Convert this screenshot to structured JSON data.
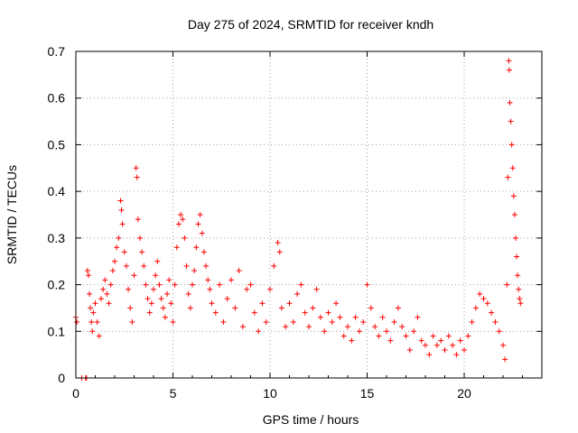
{
  "chart_data": {
    "type": "scatter",
    "title": "Day 275 of 2024, SRMTID for receiver kndh",
    "xlabel": "GPS time / hours",
    "ylabel": "SRMTID / TECUs",
    "xlim": [
      0,
      24
    ],
    "ylim": [
      0,
      0.7
    ],
    "xticks": [
      0,
      5,
      10,
      15,
      20
    ],
    "yticks": [
      0,
      0.1,
      0.2,
      0.3,
      0.4,
      0.5,
      0.6,
      0.7
    ],
    "xtick_labels": [
      "0",
      "5",
      "10",
      "15",
      "20"
    ],
    "ytick_labels": [
      "0",
      "0.1",
      "0.2",
      "0.3",
      "0.4",
      "0.5",
      "0.6",
      "0.7"
    ],
    "grid": true,
    "marker": "+",
    "color": "#ff0000",
    "series": [
      {
        "name": "SRMTID",
        "points": [
          [
            0.0,
            0.13
          ],
          [
            0.05,
            0.12
          ],
          [
            0.3,
            0.0
          ],
          [
            0.5,
            0.0
          ],
          [
            0.55,
            0.0
          ],
          [
            0.6,
            0.23
          ],
          [
            0.65,
            0.22
          ],
          [
            0.7,
            0.18
          ],
          [
            0.75,
            0.15
          ],
          [
            0.8,
            0.12
          ],
          [
            0.85,
            0.1
          ],
          [
            0.9,
            0.14
          ],
          [
            1.0,
            0.16
          ],
          [
            1.1,
            0.12
          ],
          [
            1.2,
            0.09
          ],
          [
            1.3,
            0.17
          ],
          [
            1.4,
            0.19
          ],
          [
            1.5,
            0.21
          ],
          [
            1.6,
            0.18
          ],
          [
            1.7,
            0.16
          ],
          [
            1.8,
            0.2
          ],
          [
            1.9,
            0.23
          ],
          [
            2.0,
            0.25
          ],
          [
            2.1,
            0.28
          ],
          [
            2.2,
            0.3
          ],
          [
            2.3,
            0.38
          ],
          [
            2.35,
            0.36
          ],
          [
            2.4,
            0.33
          ],
          [
            2.5,
            0.27
          ],
          [
            2.6,
            0.24
          ],
          [
            2.7,
            0.19
          ],
          [
            2.8,
            0.15
          ],
          [
            2.9,
            0.12
          ],
          [
            3.0,
            0.22
          ],
          [
            3.1,
            0.45
          ],
          [
            3.15,
            0.43
          ],
          [
            3.2,
            0.34
          ],
          [
            3.3,
            0.3
          ],
          [
            3.4,
            0.27
          ],
          [
            3.5,
            0.24
          ],
          [
            3.6,
            0.2
          ],
          [
            3.7,
            0.17
          ],
          [
            3.8,
            0.14
          ],
          [
            3.9,
            0.16
          ],
          [
            4.0,
            0.19
          ],
          [
            4.1,
            0.22
          ],
          [
            4.2,
            0.25
          ],
          [
            4.3,
            0.2
          ],
          [
            4.4,
            0.17
          ],
          [
            4.5,
            0.15
          ],
          [
            4.6,
            0.13
          ],
          [
            4.7,
            0.18
          ],
          [
            4.8,
            0.21
          ],
          [
            4.9,
            0.16
          ],
          [
            5.0,
            0.12
          ],
          [
            5.1,
            0.2
          ],
          [
            5.2,
            0.28
          ],
          [
            5.3,
            0.33
          ],
          [
            5.4,
            0.35
          ],
          [
            5.5,
            0.34
          ],
          [
            5.6,
            0.3
          ],
          [
            5.7,
            0.24
          ],
          [
            5.8,
            0.18
          ],
          [
            5.9,
            0.15
          ],
          [
            6.0,
            0.2
          ],
          [
            6.1,
            0.23
          ],
          [
            6.2,
            0.28
          ],
          [
            6.3,
            0.33
          ],
          [
            6.4,
            0.35
          ],
          [
            6.5,
            0.31
          ],
          [
            6.6,
            0.27
          ],
          [
            6.7,
            0.24
          ],
          [
            6.8,
            0.21
          ],
          [
            6.9,
            0.19
          ],
          [
            7.0,
            0.16
          ],
          [
            7.2,
            0.14
          ],
          [
            7.4,
            0.2
          ],
          [
            7.6,
            0.12
          ],
          [
            7.8,
            0.17
          ],
          [
            8.0,
            0.21
          ],
          [
            8.2,
            0.15
          ],
          [
            8.4,
            0.23
          ],
          [
            8.6,
            0.11
          ],
          [
            8.8,
            0.19
          ],
          [
            9.0,
            0.2
          ],
          [
            9.2,
            0.14
          ],
          [
            9.4,
            0.1
          ],
          [
            9.6,
            0.16
          ],
          [
            9.8,
            0.12
          ],
          [
            10.0,
            0.19
          ],
          [
            10.2,
            0.24
          ],
          [
            10.4,
            0.29
          ],
          [
            10.5,
            0.27
          ],
          [
            10.6,
            0.15
          ],
          [
            10.8,
            0.11
          ],
          [
            11.0,
            0.16
          ],
          [
            11.2,
            0.12
          ],
          [
            11.4,
            0.18
          ],
          [
            11.6,
            0.2
          ],
          [
            11.8,
            0.14
          ],
          [
            12.0,
            0.11
          ],
          [
            12.2,
            0.15
          ],
          [
            12.4,
            0.19
          ],
          [
            12.6,
            0.13
          ],
          [
            12.8,
            0.1
          ],
          [
            13.0,
            0.14
          ],
          [
            13.2,
            0.12
          ],
          [
            13.4,
            0.16
          ],
          [
            13.6,
            0.13
          ],
          [
            13.8,
            0.09
          ],
          [
            14.0,
            0.11
          ],
          [
            14.2,
            0.08
          ],
          [
            14.4,
            0.13
          ],
          [
            14.6,
            0.1
          ],
          [
            14.8,
            0.12
          ],
          [
            15.0,
            0.2
          ],
          [
            15.2,
            0.15
          ],
          [
            15.4,
            0.11
          ],
          [
            15.6,
            0.09
          ],
          [
            15.8,
            0.13
          ],
          [
            16.0,
            0.1
          ],
          [
            16.2,
            0.08
          ],
          [
            16.4,
            0.12
          ],
          [
            16.6,
            0.15
          ],
          [
            16.8,
            0.11
          ],
          [
            17.0,
            0.09
          ],
          [
            17.2,
            0.06
          ],
          [
            17.4,
            0.1
          ],
          [
            17.6,
            0.13
          ],
          [
            17.8,
            0.08
          ],
          [
            18.0,
            0.07
          ],
          [
            18.2,
            0.05
          ],
          [
            18.4,
            0.09
          ],
          [
            18.6,
            0.07
          ],
          [
            18.8,
            0.08
          ],
          [
            19.0,
            0.06
          ],
          [
            19.2,
            0.09
          ],
          [
            19.4,
            0.07
          ],
          [
            19.6,
            0.05
          ],
          [
            19.8,
            0.08
          ],
          [
            20.0,
            0.06
          ],
          [
            20.2,
            0.09
          ],
          [
            20.4,
            0.12
          ],
          [
            20.6,
            0.15
          ],
          [
            20.8,
            0.18
          ],
          [
            21.0,
            0.17
          ],
          [
            21.2,
            0.16
          ],
          [
            21.4,
            0.14
          ],
          [
            21.6,
            0.12
          ],
          [
            21.8,
            0.1
          ],
          [
            22.0,
            0.07
          ],
          [
            22.1,
            0.04
          ],
          [
            22.2,
            0.2
          ],
          [
            22.25,
            0.43
          ],
          [
            22.3,
            0.68
          ],
          [
            22.32,
            0.66
          ],
          [
            22.35,
            0.59
          ],
          [
            22.4,
            0.55
          ],
          [
            22.45,
            0.5
          ],
          [
            22.5,
            0.45
          ],
          [
            22.55,
            0.39
          ],
          [
            22.6,
            0.35
          ],
          [
            22.65,
            0.3
          ],
          [
            22.7,
            0.26
          ],
          [
            22.75,
            0.22
          ],
          [
            22.8,
            0.19
          ],
          [
            22.85,
            0.17
          ],
          [
            22.9,
            0.16
          ]
        ]
      }
    ]
  }
}
